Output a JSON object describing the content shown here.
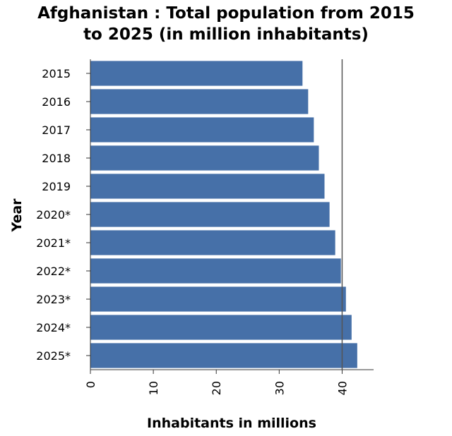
{
  "chart_data": {
    "type": "bar",
    "orientation": "horizontal",
    "title": "Afghanistan : Total population from 2015 to 2025 (in million inhabitants)",
    "xlabel": "Inhabitants in millions",
    "ylabel": "Year",
    "categories": [
      "2015",
      "2016",
      "2017",
      "2018",
      "2019",
      "2020*",
      "2021*",
      "2022*",
      "2023*",
      "2024*",
      "2025*"
    ],
    "values": [
      33.7,
      34.6,
      35.5,
      36.3,
      37.2,
      38.0,
      38.9,
      39.8,
      40.6,
      41.5,
      42.4
    ],
    "xlim": [
      0,
      45
    ],
    "xticks": [
      0,
      10,
      20,
      30,
      40
    ],
    "reference_line": 40,
    "grid": false,
    "bar_color": "#4670a8"
  }
}
